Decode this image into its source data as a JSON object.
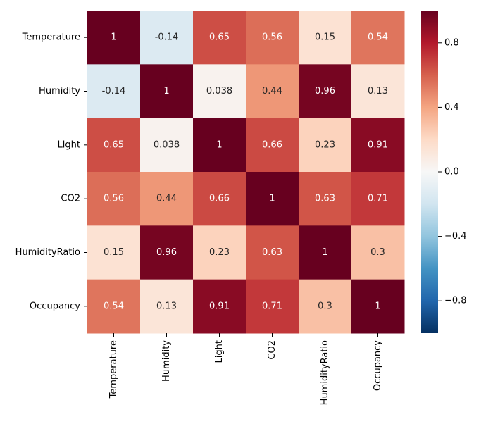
{
  "chart_data": {
    "type": "heatmap",
    "x_categories": [
      "Temperature",
      "Humidity",
      "Light",
      "CO2",
      "HumidityRatio",
      "Occupancy"
    ],
    "y_categories": [
      "Temperature",
      "Humidity",
      "Light",
      "CO2",
      "HumidityRatio",
      "Occupancy"
    ],
    "values": [
      [
        1,
        -0.14,
        0.65,
        0.56,
        0.15,
        0.54
      ],
      [
        -0.14,
        1,
        0.038,
        0.44,
        0.96,
        0.13
      ],
      [
        0.65,
        0.038,
        1,
        0.66,
        0.23,
        0.91
      ],
      [
        0.56,
        0.44,
        0.66,
        1,
        0.63,
        0.71
      ],
      [
        0.15,
        0.96,
        0.23,
        0.63,
        1,
        0.3
      ],
      [
        0.54,
        0.13,
        0.91,
        0.71,
        0.3,
        1
      ]
    ],
    "zlim": [
      -1,
      1
    ],
    "colorscale": [
      "#053061",
      "#2166ac",
      "#4393c3",
      "#92c5de",
      "#d1e5f0",
      "#f7f7f7",
      "#fddbc7",
      "#f4a582",
      "#d6604d",
      "#b2182b",
      "#67001f"
    ],
    "colorbar_ticks": [
      {
        "value": -0.8,
        "label": "−0.8"
      },
      {
        "value": -0.4,
        "label": "−0.4"
      },
      {
        "value": 0,
        "label": "0.0"
      },
      0.4,
      0.8
    ]
  }
}
